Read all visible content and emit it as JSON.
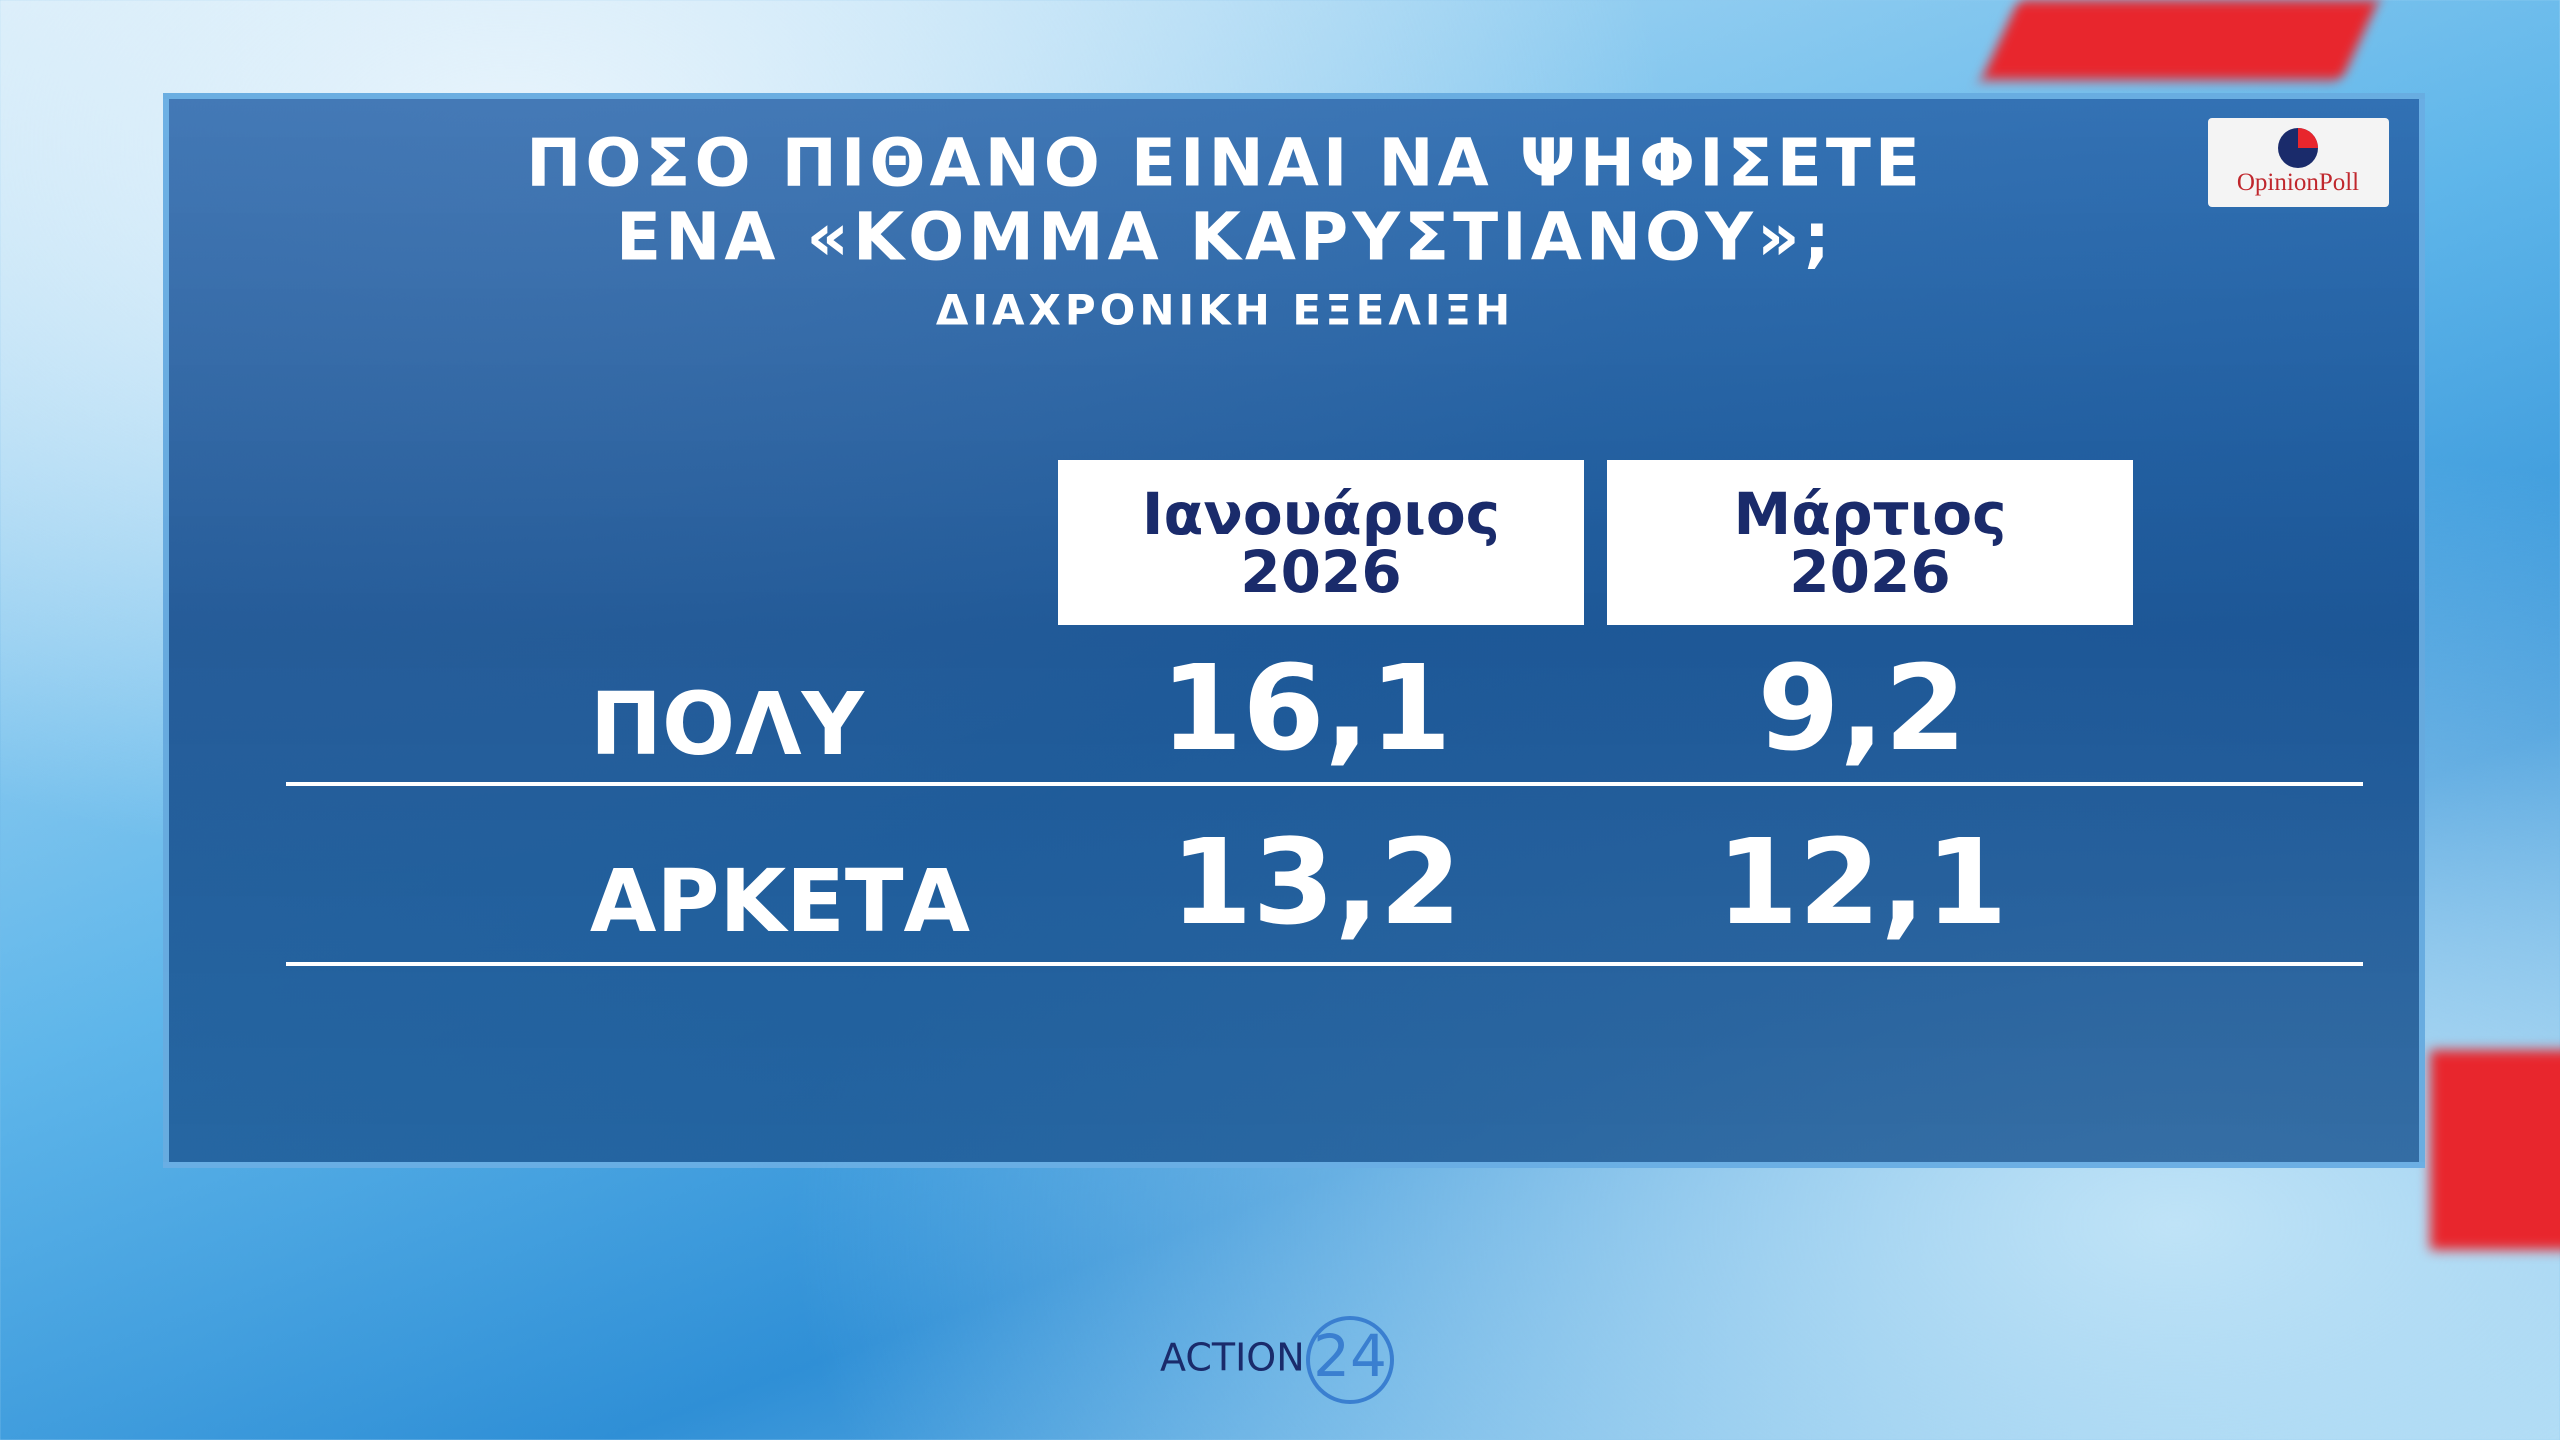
{
  "header": {
    "title": [
      "ΠΟΣΟ ΠΙΘΑΝΟ ΕΙΝΑΙ ΝΑ ΨΗΦΙΣΕΤΕ",
      "ΕΝΑ «ΚΟΜΜΑ ΚΑΡΥΣΤΙΑΝΟΥ»;"
    ],
    "subtitle": "ΔΙΑΧΡΟΝΙΚΗ ΕΞΕΛΙΞΗ",
    "logo": "OpinionPoll"
  },
  "table": {
    "columns": [
      [
        "Ιανουάριος",
        "2026"
      ],
      [
        "Μάρτιος",
        "2026"
      ]
    ],
    "rows": [
      [
        "ΠΟΛΥ",
        "16,1",
        "9,2"
      ],
      [
        "ΑΡΚΕΤΑ",
        "13,2",
        "12,1"
      ]
    ]
  },
  "footer": {
    "logo": [
      "ACTION",
      "24"
    ]
  }
}
